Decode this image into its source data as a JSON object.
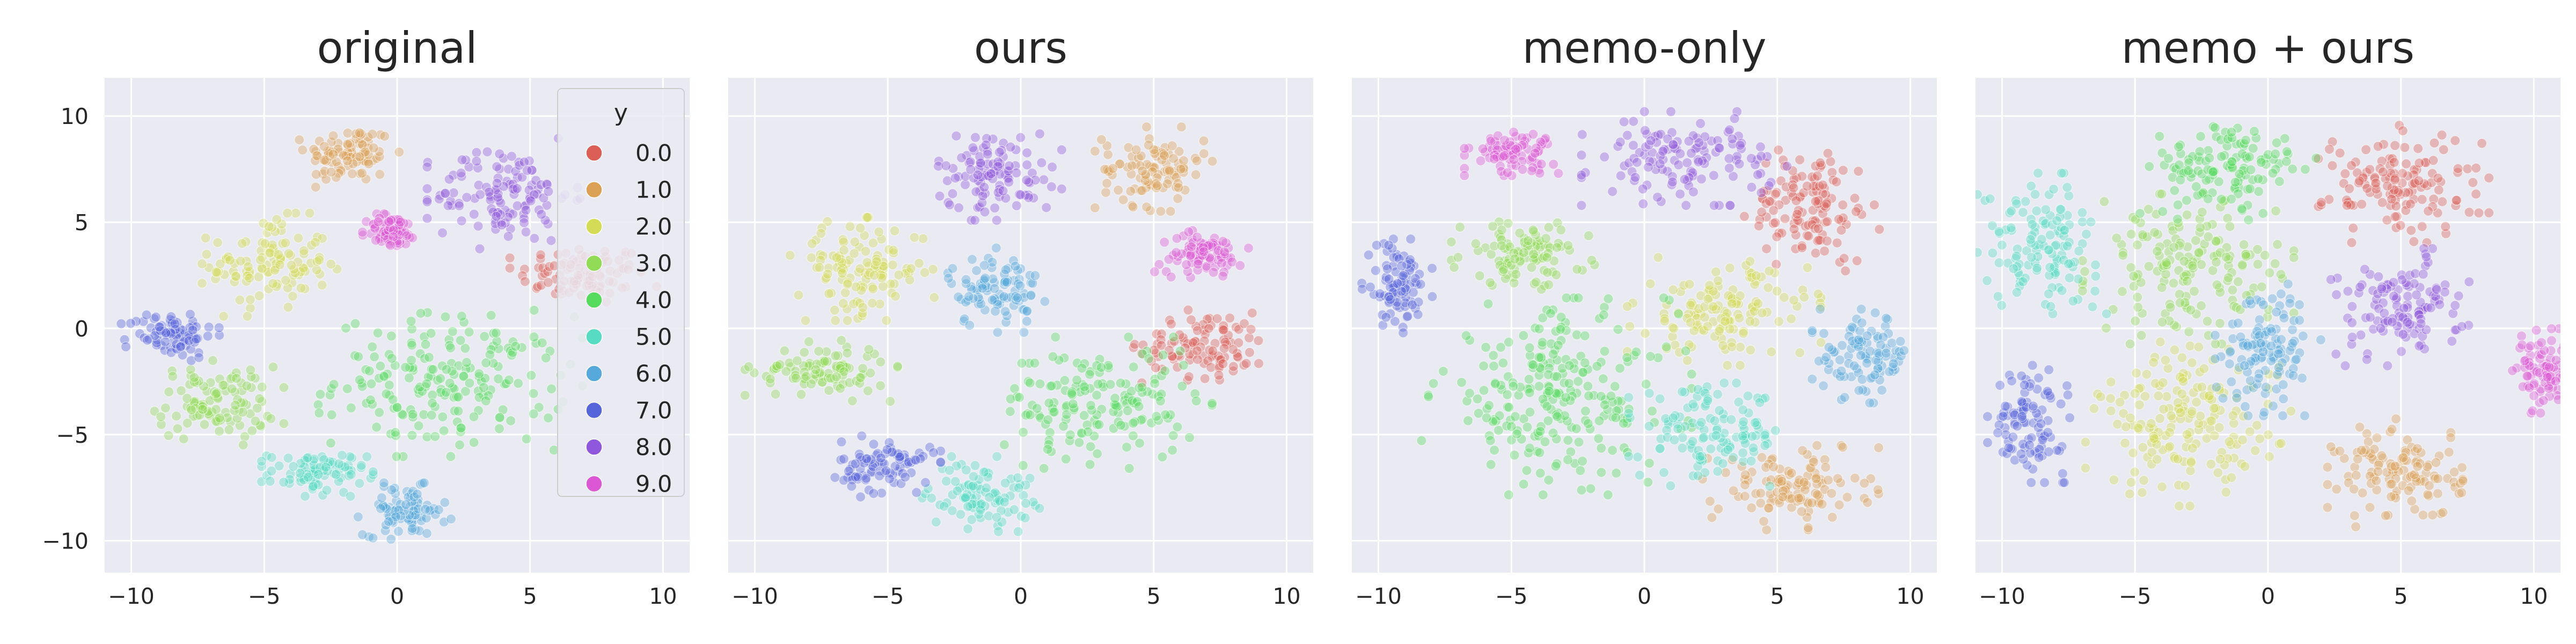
{
  "figure": {
    "legend_title": "y"
  },
  "chart_data": [
    {
      "type": "scatter",
      "title": "original",
      "xlim": [
        -11,
        11
      ],
      "ylim": [
        -11.5,
        11.8
      ],
      "xticks": [
        -10,
        -5,
        0,
        5,
        10
      ],
      "yticks": [
        -10,
        -5,
        0,
        5,
        10
      ],
      "grid": true,
      "legend": "top-right",
      "clusters": [
        {
          "label": "0.0",
          "cx": 7.0,
          "cy": 2.5,
          "rx": 2.5,
          "ry": 1.5
        },
        {
          "label": "1.0",
          "cx": -1.8,
          "cy": 8.2,
          "rx": 1.7,
          "ry": 1.4
        },
        {
          "label": "2.0",
          "cx": -4.8,
          "cy": 3.0,
          "rx": 2.3,
          "ry": 2.2
        },
        {
          "label": "3.0",
          "cx": -6.8,
          "cy": -3.5,
          "rx": 2.3,
          "ry": 1.8
        },
        {
          "label": "4.0",
          "cx": 2.0,
          "cy": -2.5,
          "rx": 4.5,
          "ry": 3.2
        },
        {
          "label": "5.0",
          "cx": -3.0,
          "cy": -6.8,
          "rx": 1.9,
          "ry": 1.0
        },
        {
          "label": "6.0",
          "cx": 0.3,
          "cy": -8.6,
          "rx": 1.6,
          "ry": 1.2
        },
        {
          "label": "7.0",
          "cx": -8.5,
          "cy": -0.3,
          "rx": 1.7,
          "ry": 1.1
        },
        {
          "label": "8.0",
          "cx": 4.0,
          "cy": 6.3,
          "rx": 2.6,
          "ry": 2.4
        },
        {
          "label": "9.0",
          "cx": -0.2,
          "cy": 4.6,
          "rx": 1.0,
          "ry": 0.8
        }
      ]
    },
    {
      "type": "scatter",
      "title": "ours",
      "xlim": [
        -11,
        11
      ],
      "ylim": [
        -11.5,
        11.8
      ],
      "xticks": [
        -10,
        -5,
        0,
        5,
        10
      ],
      "yticks": [
        -10,
        -5,
        0,
        5,
        10
      ],
      "grid": true,
      "legend": "none",
      "clusters": [
        {
          "label": "0.0",
          "cx": 7.0,
          "cy": -0.8,
          "rx": 2.5,
          "ry": 1.6
        },
        {
          "label": "1.0",
          "cx": 5.0,
          "cy": 7.5,
          "rx": 2.0,
          "ry": 1.8
        },
        {
          "label": "2.0",
          "cx": -6.0,
          "cy": 2.8,
          "rx": 2.5,
          "ry": 2.2
        },
        {
          "label": "3.0",
          "cx": -7.5,
          "cy": -2.0,
          "rx": 2.6,
          "ry": 1.3
        },
        {
          "label": "4.0",
          "cx": 3.0,
          "cy": -3.5,
          "rx": 3.8,
          "ry": 2.8
        },
        {
          "label": "5.0",
          "cx": -1.5,
          "cy": -7.8,
          "rx": 2.0,
          "ry": 1.6
        },
        {
          "label": "6.0",
          "cx": -1.0,
          "cy": 1.8,
          "rx": 1.8,
          "ry": 1.8
        },
        {
          "label": "7.0",
          "cx": -5.0,
          "cy": -6.5,
          "rx": 1.8,
          "ry": 1.3
        },
        {
          "label": "8.0",
          "cx": -1.0,
          "cy": 7.3,
          "rx": 2.3,
          "ry": 2.0
        },
        {
          "label": "9.0",
          "cx": 6.8,
          "cy": 3.5,
          "rx": 1.6,
          "ry": 1.0
        }
      ]
    },
    {
      "type": "scatter",
      "title": "memo-only",
      "xlim": [
        -11,
        11
      ],
      "ylim": [
        -11.5,
        11.8
      ],
      "xticks": [
        -10,
        -5,
        0,
        5,
        10
      ],
      "yticks": [
        -10,
        -5,
        0,
        5,
        10
      ],
      "grid": true,
      "legend": "none",
      "clusters": [
        {
          "label": "0.0",
          "cx": 6.3,
          "cy": 5.8,
          "rx": 2.3,
          "ry": 2.8
        },
        {
          "label": "1.0",
          "cx": 5.5,
          "cy": -7.5,
          "rx": 3.0,
          "ry": 1.8
        },
        {
          "label": "2.0",
          "cx": 3.0,
          "cy": 0.8,
          "rx": 3.3,
          "ry": 2.3
        },
        {
          "label": "3.0",
          "cx": -4.5,
          "cy": 3.5,
          "rx": 2.5,
          "ry": 1.5
        },
        {
          "label": "4.0",
          "cx": -3.3,
          "cy": -3.2,
          "rx": 4.6,
          "ry": 4.2
        },
        {
          "label": "5.0",
          "cx": 2.5,
          "cy": -5.0,
          "rx": 2.8,
          "ry": 2.2
        },
        {
          "label": "6.0",
          "cx": 8.3,
          "cy": -1.3,
          "rx": 1.8,
          "ry": 2.0
        },
        {
          "label": "7.0",
          "cx": -9.3,
          "cy": 2.0,
          "rx": 1.2,
          "ry": 2.0
        },
        {
          "label": "8.0",
          "cx": 1.5,
          "cy": 8.0,
          "rx": 3.5,
          "ry": 2.0
        },
        {
          "label": "9.0",
          "cx": -5.0,
          "cy": 8.3,
          "rx": 1.6,
          "ry": 1.0
        }
      ]
    },
    {
      "type": "scatter",
      "title": "memo + ours",
      "xlim": [
        -11,
        11
      ],
      "ylim": [
        -11.5,
        11.8
      ],
      "xticks": [
        -10,
        -5,
        0,
        5,
        10
      ],
      "yticks": [
        -10,
        -5,
        0,
        5,
        10
      ],
      "grid": true,
      "legend": "none",
      "clusters": [
        {
          "label": "0.0",
          "cx": 5.0,
          "cy": 6.8,
          "rx": 3.0,
          "ry": 2.5
        },
        {
          "label": "1.0",
          "cx": 5.0,
          "cy": -6.8,
          "rx": 2.5,
          "ry": 2.3
        },
        {
          "label": "2.0",
          "cx": -3.0,
          "cy": -4.5,
          "rx": 3.5,
          "ry": 3.5
        },
        {
          "label": "3.0",
          "cx": -3.0,
          "cy": 2.8,
          "rx": 3.6,
          "ry": 3.2
        },
        {
          "label": "4.0",
          "cx": -1.5,
          "cy": 7.5,
          "rx": 3.0,
          "ry": 2.2
        },
        {
          "label": "5.0",
          "cx": -8.5,
          "cy": 4.0,
          "rx": 2.2,
          "ry": 3.0
        },
        {
          "label": "6.0",
          "cx": 0.0,
          "cy": -0.8,
          "rx": 1.8,
          "ry": 3.0
        },
        {
          "label": "7.0",
          "cx": -9.0,
          "cy": -4.5,
          "rx": 1.4,
          "ry": 2.5
        },
        {
          "label": "8.0",
          "cx": 5.0,
          "cy": 1.0,
          "rx": 2.5,
          "ry": 2.5
        },
        {
          "label": "9.0",
          "cx": 10.3,
          "cy": -2.0,
          "rx": 1.0,
          "ry": 1.8
        }
      ]
    }
  ],
  "legend_entries": [
    {
      "label": "0.0",
      "color": "#db5f57"
    },
    {
      "label": "1.0",
      "color": "#dba157"
    },
    {
      "label": "2.0",
      "color": "#d3db57"
    },
    {
      "label": "3.0",
      "color": "#91db57"
    },
    {
      "label": "4.0",
      "color": "#57db5f"
    },
    {
      "label": "5.0",
      "color": "#57dbc2"
    },
    {
      "label": "6.0",
      "color": "#57a9db"
    },
    {
      "label": "7.0",
      "color": "#5765db"
    },
    {
      "label": "8.0",
      "color": "#8f57db"
    },
    {
      "label": "9.0",
      "color": "#db57d3"
    }
  ],
  "style": {
    "panel_bg": "#eaeaf2",
    "grid_color": "#ffffff",
    "text_color": "#262626"
  }
}
